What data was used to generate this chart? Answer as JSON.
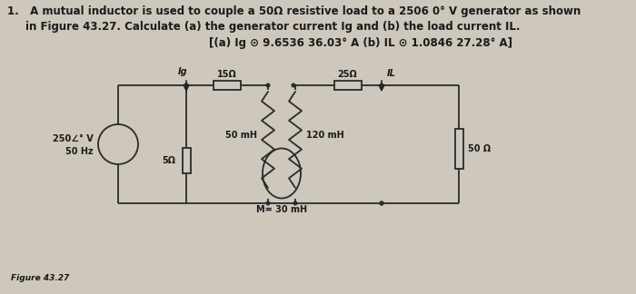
{
  "background_color": "#cdc7bc",
  "title_line1": "1.   A mutual inductor is used to couple a 50Ω resistive load to a 2506 0° V generator as shown",
  "title_line2": "in Figure 43.27. Calculate (a) the generator current Ig and (b) the load current IL.",
  "answer_line": "[(a) Ig ⊙ 9.6536 36.03° A (b) IL ⊙ 1.0846 27.28° A]",
  "fig_label": "Figure 43.27",
  "resistor_labels": [
    "15Ω",
    "25Ω"
  ],
  "inductor_labels": [
    "50 mH",
    "120 mH"
  ],
  "mutual_label": "M= 30 mH",
  "source_label1": "250∠° V",
  "source_label2": "50 Hz",
  "load_resistor_left": "5Ω",
  "load_resistor_right": "50 Ω",
  "current_label_left": "Ig",
  "current_label_right": "IL",
  "wire_color": "#2a2a2a",
  "text_color": "#1a1a1a"
}
